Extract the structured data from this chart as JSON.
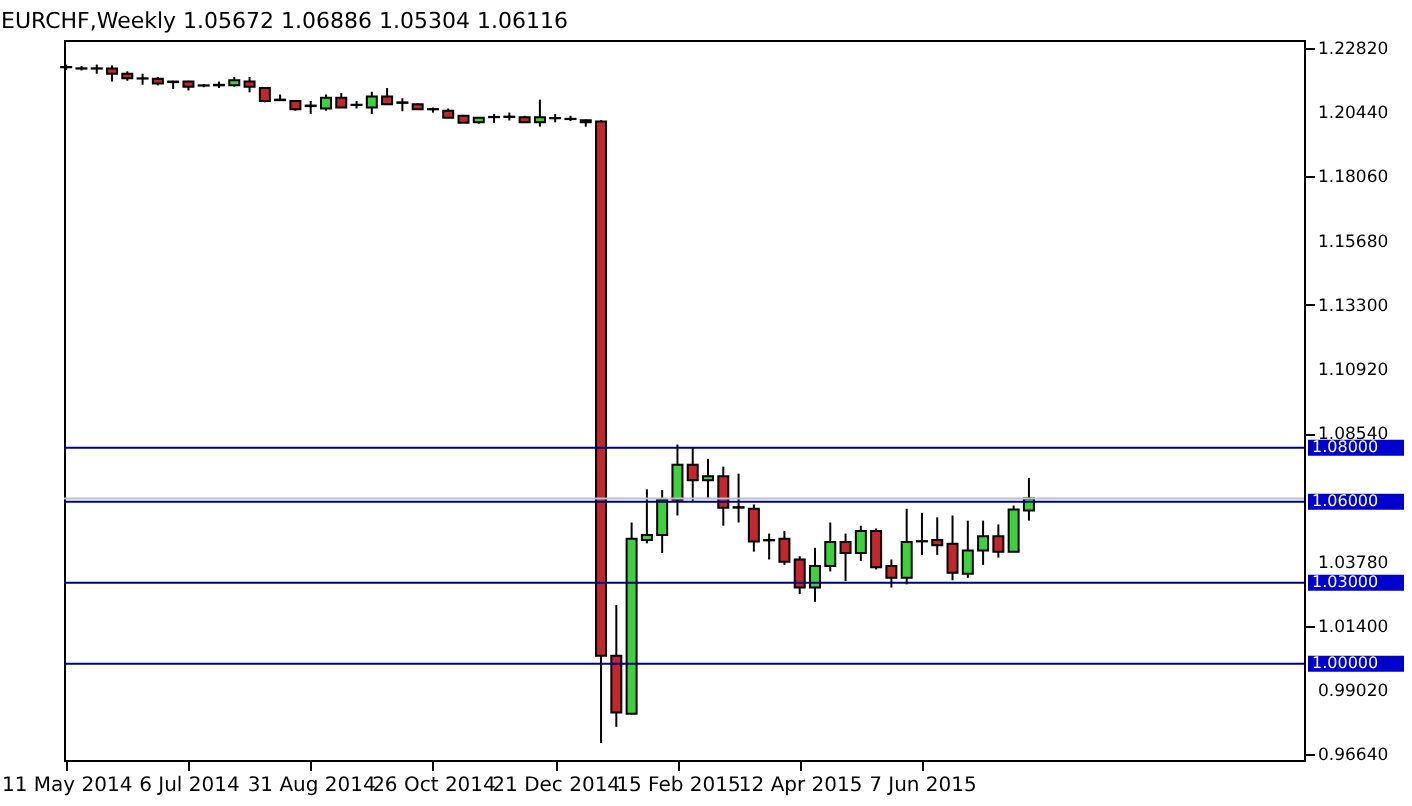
{
  "chart_data": {
    "type": "candlestick",
    "title": "EURCHF,Weekly  1.05672 1.06886 1.05304 1.06116",
    "x": [
      "2014-05-11",
      "2014-05-18",
      "2014-05-25",
      "2014-06-01",
      "2014-06-08",
      "2014-06-15",
      "2014-06-22",
      "2014-06-29",
      "2014-07-06",
      "2014-07-13",
      "2014-07-20",
      "2014-07-27",
      "2014-08-03",
      "2014-08-10",
      "2014-08-17",
      "2014-08-24",
      "2014-08-31",
      "2014-09-07",
      "2014-09-14",
      "2014-09-21",
      "2014-09-28",
      "2014-10-05",
      "2014-10-12",
      "2014-10-19",
      "2014-10-26",
      "2014-11-02",
      "2014-11-09",
      "2014-11-16",
      "2014-11-23",
      "2014-11-30",
      "2014-12-07",
      "2014-12-14",
      "2014-12-21",
      "2014-12-28",
      "2015-01-04",
      "2015-01-11",
      "2015-01-18",
      "2015-01-25",
      "2015-02-01",
      "2015-02-08",
      "2015-02-15",
      "2015-02-22",
      "2015-03-01",
      "2015-03-08",
      "2015-03-15",
      "2015-03-22",
      "2015-03-29",
      "2015-04-05",
      "2015-04-12",
      "2015-04-19",
      "2015-04-26",
      "2015-05-03",
      "2015-05-10",
      "2015-05-17",
      "2015-05-24",
      "2015-05-31",
      "2015-06-07",
      "2015-06-14",
      "2015-06-21",
      "2015-06-28",
      "2015-07-05",
      "2015-07-12",
      "2015-07-19",
      "2015-07-26"
    ],
    "ohlc": [
      [
        1.221,
        1.222,
        1.22,
        1.2211
      ],
      [
        1.2206,
        1.2215,
        1.2198,
        1.2205
      ],
      [
        1.2205,
        1.222,
        1.2186,
        1.2206
      ],
      [
        1.2205,
        1.2217,
        1.2157,
        1.2186
      ],
      [
        1.2186,
        1.2195,
        1.216,
        1.2169
      ],
      [
        1.2169,
        1.2186,
        1.2145,
        1.2168
      ],
      [
        1.2167,
        1.2174,
        1.2143,
        1.215
      ],
      [
        1.2155,
        1.216,
        1.2129,
        1.2157
      ],
      [
        1.2157,
        1.216,
        1.2124,
        1.2138
      ],
      [
        1.2142,
        1.2148,
        1.2136,
        1.2143
      ],
      [
        1.2143,
        1.2157,
        1.2133,
        1.2145
      ],
      [
        1.2143,
        1.2174,
        1.2138,
        1.2162
      ],
      [
        1.2157,
        1.2174,
        1.2117,
        1.2138
      ],
      [
        1.2133,
        1.2136,
        1.208,
        1.2085
      ],
      [
        1.2088,
        1.2109,
        1.2085,
        1.209
      ],
      [
        1.2085,
        1.2088,
        1.2049,
        1.2054
      ],
      [
        1.2066,
        1.2085,
        1.2037,
        1.2068
      ],
      [
        1.2057,
        1.2109,
        1.2049,
        1.2097
      ],
      [
        1.2097,
        1.2114,
        1.2059,
        1.2061
      ],
      [
        1.207,
        1.2085,
        1.2057,
        1.2071
      ],
      [
        1.2061,
        1.2119,
        1.2037,
        1.2102
      ],
      [
        1.2102,
        1.2133,
        1.2071,
        1.2073
      ],
      [
        1.208,
        1.2095,
        1.2047,
        1.2078
      ],
      [
        1.2073,
        1.2076,
        1.2052,
        1.2054
      ],
      [
        1.2054,
        1.2061,
        1.2042,
        1.2055
      ],
      [
        1.2049,
        1.2057,
        1.2021,
        1.2023
      ],
      [
        1.203,
        1.2032,
        1.2004,
        1.2004
      ],
      [
        1.2006,
        1.2025,
        1.2001,
        1.2023
      ],
      [
        1.2025,
        1.2037,
        1.2004,
        1.2026
      ],
      [
        1.2026,
        1.2042,
        1.2013,
        1.2027
      ],
      [
        1.2025,
        1.203,
        1.2004,
        1.2006
      ],
      [
        1.2006,
        1.209,
        1.199,
        1.2025
      ],
      [
        1.2021,
        1.2037,
        1.2006,
        1.2022
      ],
      [
        1.2018,
        1.203,
        1.2011,
        1.2019
      ],
      [
        1.2014,
        1.2016,
        1.199,
        1.2006
      ],
      [
        1.2009,
        1.2014,
        0.9706,
        1.0029
      ],
      [
        1.0029,
        1.0217,
        0.9766,
        0.9819
      ],
      [
        0.9814,
        1.0523,
        0.9812,
        1.0463
      ],
      [
        1.0458,
        1.0646,
        1.0446,
        1.0477
      ],
      [
        1.0477,
        1.0643,
        1.041,
        1.0607
      ],
      [
        1.0607,
        1.0812,
        1.0549,
        1.0737
      ],
      [
        1.0737,
        1.08,
        1.0603,
        1.068
      ],
      [
        1.068,
        1.0759,
        1.0615,
        1.0694
      ],
      [
        1.0694,
        1.073,
        1.0511,
        1.0578
      ],
      [
        1.058,
        1.0704,
        1.0523,
        1.0578
      ],
      [
        1.0574,
        1.059,
        1.0415,
        1.0453
      ],
      [
        1.0457,
        1.0482,
        1.0386,
        1.0458
      ],
      [
        1.0463,
        1.0492,
        1.0366,
        1.0378
      ],
      [
        1.0386,
        1.0398,
        1.0258,
        1.0282
      ],
      [
        1.0282,
        1.0429,
        1.0229,
        1.0362
      ],
      [
        1.0362,
        1.0523,
        1.0342,
        1.0451
      ],
      [
        1.0451,
        1.0482,
        1.0306,
        1.041
      ],
      [
        1.041,
        1.0511,
        1.0381,
        1.0492
      ],
      [
        1.0492,
        1.0501,
        1.0349,
        1.0357
      ],
      [
        1.0362,
        1.0386,
        1.0282,
        1.0318
      ],
      [
        1.0318,
        1.0574,
        1.0294,
        1.0451
      ],
      [
        1.0453,
        1.0559,
        1.0403,
        1.0454
      ],
      [
        1.0458,
        1.0542,
        1.0403,
        1.0439
      ],
      [
        1.0444,
        1.0549,
        1.0309,
        1.0337
      ],
      [
        1.0333,
        1.053,
        1.0318,
        1.0419
      ],
      [
        1.0419,
        1.053,
        1.0366,
        1.0472
      ],
      [
        1.0472,
        1.0516,
        1.0393,
        1.0415
      ],
      [
        1.0415,
        1.0586,
        1.0415,
        1.0571
      ],
      [
        1.05672,
        1.06886,
        1.05304,
        1.06116
      ]
    ],
    "colors": [
      "#3ed13e",
      "#c0282d",
      "#3ed13e",
      "#c0282d",
      "#c0282d",
      "#c0282d",
      "#c0282d",
      "#3ed13e",
      "#c0282d",
      "#3ed13e",
      "#3ed13e",
      "#3ed13e",
      "#c0282d",
      "#c0282d",
      "#3ed13e",
      "#c0282d",
      "#3ed13e",
      "#3ed13e",
      "#c0282d",
      "#3ed13e",
      "#3ed13e",
      "#c0282d",
      "#c0282d",
      "#c0282d",
      "#3ed13e",
      "#c0282d",
      "#c0282d",
      "#3ed13e",
      "#3ed13e",
      "#3ed13e",
      "#c0282d",
      "#3ed13e",
      "#3ed13e",
      "#3ed13e",
      "#c0282d",
      "#c0282d",
      "#c0282d",
      "#3ed13e",
      "#3ed13e",
      "#3ed13e",
      "#3ed13e",
      "#c0282d",
      "#3ed13e",
      "#c0282d",
      "#c0282d",
      "#c0282d",
      "#3ed13e",
      "#c0282d",
      "#c0282d",
      "#3ed13e",
      "#3ed13e",
      "#c0282d",
      "#3ed13e",
      "#c0282d",
      "#c0282d",
      "#3ed13e",
      "#3ed13e",
      "#c0282d",
      "#c0282d",
      "#3ed13e",
      "#3ed13e",
      "#c0282d",
      "#3ed13e",
      "#3ed13e"
    ],
    "xlim": [
      "2014-05-10",
      "2015-11-29"
    ],
    "xticks": [
      {
        "value": "2014-05-11",
        "label": "11 May 2014"
      },
      {
        "value": "2014-07-06",
        "label": "6 Jul 2014"
      },
      {
        "value": "2014-08-31",
        "label": "31 Aug 2014"
      },
      {
        "value": "2014-10-26",
        "label": "26 Oct 2014"
      },
      {
        "value": "2014-12-21",
        "label": "21 Dec 2014"
      },
      {
        "value": "2015-02-15",
        "label": "15 Feb 2015"
      },
      {
        "value": "2015-04-12",
        "label": "12 Apr 2015"
      },
      {
        "value": "2015-06-07",
        "label": "7 Jun 2015"
      }
    ],
    "ylim": [
      0.9643,
      1.2311
    ],
    "yticks": [
      {
        "value": 1.2282,
        "label": "1.22820"
      },
      {
        "value": 1.2044,
        "label": "1.20440"
      },
      {
        "value": 1.1806,
        "label": "1.18060"
      },
      {
        "value": 1.1568,
        "label": "1.15680"
      },
      {
        "value": 1.133,
        "label": "1.13300"
      },
      {
        "value": 1.1092,
        "label": "1.10920"
      },
      {
        "value": 1.0854,
        "label": "1.08540"
      },
      {
        "value": 1.0378,
        "label": "1.03780"
      },
      {
        "value": 1.014,
        "label": "1.01400"
      },
      {
        "value": 0.9902,
        "label": "0.99020"
      },
      {
        "value": 0.9664,
        "label": "0.96640"
      }
    ],
    "ref_lines": [
      {
        "axis": "y",
        "value": 1.08,
        "label": "1.08000",
        "color": "#000080"
      },
      {
        "axis": "y",
        "value": 1.06116,
        "color": "#c0c0c0"
      },
      {
        "axis": "y",
        "value": 1.06,
        "label": "1.06000",
        "color": "#000080"
      },
      {
        "axis": "y",
        "value": 1.03,
        "label": "1.03000",
        "color": "#000080"
      },
      {
        "axis": "y",
        "value": 1.0,
        "label": "1.00000",
        "color": "#000080"
      }
    ]
  }
}
